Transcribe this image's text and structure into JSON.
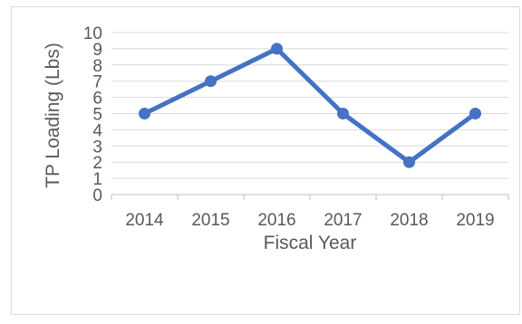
{
  "colors": {
    "series": "#4472c4",
    "grid": "#d9d9d9",
    "text": "#595959"
  },
  "chart_data": {
    "type": "line",
    "title": "",
    "xlabel": "Fiscal Year",
    "ylabel": "TP Loading (Lbs)",
    "categories": [
      "2014",
      "2015",
      "2016",
      "2017",
      "2018",
      "2019"
    ],
    "series": [
      {
        "values": [
          5,
          7,
          9,
          5,
          2,
          5
        ]
      }
    ],
    "ylim": [
      0,
      10
    ],
    "yticks": [
      "0",
      "1",
      "2",
      "3",
      "4",
      "5",
      "6",
      "7",
      "8",
      "9",
      "10"
    ],
    "grid": true,
    "markers": true,
    "legend": "none"
  }
}
